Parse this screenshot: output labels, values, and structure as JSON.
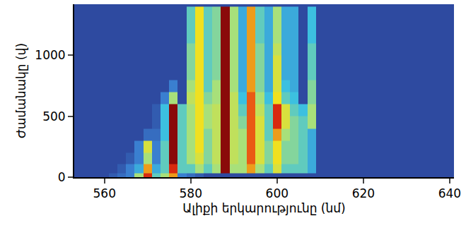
{
  "chart_data": {
    "type": "heatmap",
    "xlabel": "Ալիքի երկարությունը (նմ)",
    "ylabel": "Ժամանակը (վ)",
    "xlim": [
      553,
      641
    ],
    "ylim": [
      0,
      1420
    ],
    "xticks": [
      560,
      580,
      600,
      620,
      640
    ],
    "yticks": [
      0,
      500,
      1000
    ],
    "zlim": [
      0,
      1
    ],
    "x": [
      554,
      556,
      558,
      560,
      562,
      564,
      566,
      568,
      570,
      572,
      574,
      576,
      578,
      580,
      582,
      584,
      586,
      588,
      590,
      592,
      594,
      596,
      598,
      600,
      602,
      604,
      606,
      608,
      610,
      612,
      614,
      616,
      618,
      620,
      622,
      624,
      626,
      628,
      630,
      632,
      634,
      636,
      638,
      640
    ],
    "y": [
      10,
      60,
      150,
      250,
      350,
      450,
      550,
      650,
      750,
      850,
      950,
      1050,
      1150,
      1250,
      1350
    ],
    "z": [
      [
        0,
        0,
        0,
        0,
        0.1,
        0.2,
        0.3,
        0.6,
        0.9,
        0.5,
        0.6,
        0.8,
        0.3,
        0.2,
        0.1,
        0,
        0,
        0,
        0,
        0,
        0,
        0,
        0,
        0,
        0,
        0,
        0,
        0,
        0,
        0,
        0,
        0,
        0,
        0,
        0,
        0,
        0,
        0,
        0,
        0,
        0,
        0,
        0,
        0
      ],
      [
        0,
        0,
        0,
        0,
        0,
        0.1,
        0.3,
        0.4,
        0.8,
        0.4,
        0.5,
        0.9,
        0.5,
        0.5,
        0.6,
        0.5,
        0.6,
        1,
        0.6,
        0.6,
        0.8,
        0.6,
        0.5,
        0.7,
        0.5,
        0.5,
        0.5,
        0.4,
        0,
        0,
        0,
        0,
        0,
        0,
        0,
        0,
        0,
        0,
        0,
        0,
        0,
        0,
        0,
        0
      ],
      [
        0,
        0,
        0,
        0,
        0,
        0,
        0.1,
        0.3,
        0.6,
        0.3,
        0.5,
        1,
        0.5,
        0.6,
        0.7,
        0.55,
        0.65,
        1,
        0.65,
        0.6,
        0.85,
        0.7,
        0.55,
        0.75,
        0.55,
        0.55,
        0.5,
        0.4,
        0,
        0,
        0,
        0,
        0,
        0,
        0,
        0,
        0,
        0,
        0,
        0,
        0,
        0,
        0,
        0
      ],
      [
        0,
        0,
        0,
        0,
        0,
        0,
        0,
        0.3,
        0.7,
        0.3,
        0.5,
        1,
        0.5,
        0.6,
        0.75,
        0.55,
        0.65,
        1,
        0.65,
        0.6,
        0.85,
        0.7,
        0.55,
        0.75,
        0.55,
        0.55,
        0.5,
        0.4,
        0,
        0,
        0,
        0,
        0,
        0,
        0,
        0,
        0,
        0,
        0,
        0,
        0,
        0,
        0,
        0
      ],
      [
        0,
        0,
        0,
        0,
        0,
        0,
        0,
        0,
        0.2,
        0.2,
        0.45,
        1,
        0.5,
        0.6,
        0.75,
        0.55,
        0.65,
        1,
        0.65,
        0.6,
        0.85,
        0.7,
        0.5,
        0.8,
        0.6,
        0.55,
        0.5,
        0.4,
        0,
        0,
        0,
        0,
        0,
        0,
        0,
        0,
        0,
        0,
        0,
        0,
        0,
        0,
        0,
        0
      ],
      [
        0,
        0,
        0,
        0,
        0,
        0,
        0,
        0,
        0,
        0.1,
        0.45,
        1,
        0.5,
        0.6,
        0.75,
        0.6,
        0.65,
        1,
        0.65,
        0.55,
        0.85,
        0.7,
        0.5,
        0.9,
        0.7,
        0.55,
        0.5,
        0.6,
        0,
        0,
        0,
        0,
        0,
        0,
        0,
        0,
        0,
        0,
        0,
        0,
        0,
        0,
        0,
        0
      ],
      [
        0,
        0,
        0,
        0,
        0,
        0,
        0,
        0,
        0,
        0.1,
        0.45,
        1,
        0.5,
        0.6,
        0.75,
        0.6,
        0.65,
        1,
        0.65,
        0.5,
        0.85,
        0.65,
        0.5,
        0.9,
        0.7,
        0.5,
        0.45,
        0.6,
        0,
        0,
        0,
        0,
        0,
        0,
        0,
        0,
        0,
        0,
        0,
        0,
        0,
        0,
        0,
        0
      ],
      [
        0,
        0,
        0,
        0,
        0,
        0,
        0,
        0,
        0,
        0,
        0.3,
        0.6,
        0,
        0.65,
        0.75,
        0.55,
        0.6,
        1,
        0.65,
        0.45,
        0.85,
        0.6,
        0.45,
        0.75,
        0.5,
        0.45,
        0,
        0.55,
        0,
        0,
        0,
        0,
        0,
        0,
        0,
        0,
        0,
        0,
        0,
        0,
        0,
        0,
        0,
        0
      ],
      [
        0,
        0,
        0,
        0,
        0,
        0,
        0,
        0,
        0,
        0,
        0,
        0.3,
        0,
        0.6,
        0.75,
        0.5,
        0.6,
        1,
        0.6,
        0.4,
        0.8,
        0.55,
        0.4,
        0.7,
        0.45,
        0.4,
        0,
        0.55,
        0,
        0,
        0,
        0,
        0,
        0,
        0,
        0,
        0,
        0,
        0,
        0,
        0,
        0,
        0,
        0
      ],
      [
        0,
        0,
        0,
        0,
        0,
        0,
        0,
        0,
        0,
        0,
        0,
        0,
        0,
        0.55,
        0.75,
        0.5,
        0.55,
        1,
        0.6,
        0.4,
        0.8,
        0.55,
        0.4,
        0.7,
        0.4,
        0.4,
        0,
        0.5,
        0,
        0,
        0,
        0,
        0,
        0,
        0,
        0,
        0,
        0,
        0,
        0,
        0,
        0,
        0,
        0
      ],
      [
        0,
        0,
        0,
        0,
        0,
        0,
        0,
        0,
        0,
        0,
        0,
        0,
        0,
        0.55,
        0.75,
        0.5,
        0.55,
        1,
        0.6,
        0.4,
        0.8,
        0.55,
        0.4,
        0.7,
        0.4,
        0.4,
        0,
        0.5,
        0,
        0,
        0,
        0,
        0,
        0,
        0,
        0,
        0,
        0,
        0,
        0,
        0,
        0,
        0,
        0
      ],
      [
        0,
        0,
        0,
        0,
        0,
        0,
        0,
        0,
        0,
        0,
        0,
        0,
        0,
        0.55,
        0.75,
        0.5,
        0.55,
        1,
        0.6,
        0.4,
        0.8,
        0.55,
        0.4,
        0.65,
        0.4,
        0.4,
        0,
        0.5,
        0,
        0,
        0,
        0,
        0,
        0,
        0,
        0,
        0,
        0,
        0,
        0,
        0,
        0,
        0,
        0
      ],
      [
        0,
        0,
        0,
        0,
        0,
        0,
        0,
        0,
        0,
        0,
        0,
        0,
        0,
        0.5,
        0.75,
        0.5,
        0.55,
        1,
        0.6,
        0.4,
        0.8,
        0.5,
        0.4,
        0.6,
        0.4,
        0.4,
        0,
        0.45,
        0,
        0,
        0,
        0,
        0,
        0,
        0,
        0,
        0,
        0,
        0,
        0,
        0,
        0,
        0,
        0
      ],
      [
        0,
        0,
        0,
        0,
        0,
        0,
        0,
        0,
        0,
        0,
        0,
        0,
        0,
        0.5,
        0.75,
        0.5,
        0.55,
        1,
        0.6,
        0.4,
        0.8,
        0.5,
        0.4,
        0.6,
        0.4,
        0.4,
        0,
        0.45,
        0,
        0,
        0,
        0,
        0,
        0,
        0,
        0,
        0,
        0,
        0,
        0,
        0,
        0,
        0,
        0
      ],
      [
        0,
        0,
        0,
        0,
        0,
        0,
        0,
        0,
        0,
        0,
        0,
        0,
        0,
        0.5,
        0.75,
        0.5,
        0.55,
        1,
        0.6,
        0.4,
        0.8,
        0.5,
        0.4,
        0.6,
        0.4,
        0.4,
        0,
        0.45,
        0,
        0,
        0,
        0,
        0,
        0,
        0,
        0,
        0,
        0,
        0,
        0,
        0,
        0,
        0,
        0
      ]
    ]
  }
}
